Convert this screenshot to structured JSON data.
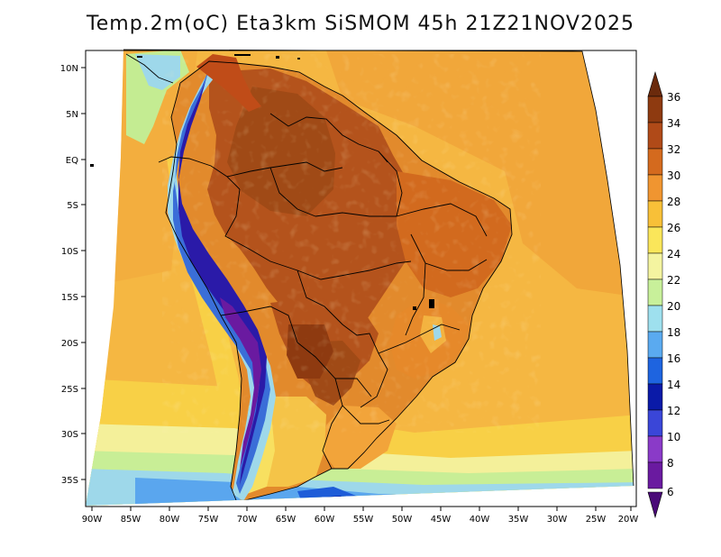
{
  "title": "Temp.2m(oC) Eta3km SiSMOM 45h 21Z21NOV2025",
  "map": {
    "variable": "2 m air temperature",
    "units": "oC",
    "lat_ticks": [
      "10N",
      "5N",
      "EQ",
      "5S",
      "10S",
      "15S",
      "20S",
      "25S",
      "30S",
      "35S"
    ],
    "lon_ticks": [
      "90W",
      "85W",
      "80W",
      "75W",
      "70W",
      "65W",
      "60W",
      "55W",
      "50W",
      "45W",
      "40W",
      "35W",
      "30W",
      "25W",
      "20W"
    ]
  },
  "colorbar": {
    "labels": [
      "36",
      "34",
      "32",
      "30",
      "28",
      "26",
      "24",
      "22",
      "20",
      "18",
      "16",
      "14",
      "12",
      "10",
      "8",
      "6"
    ],
    "colors": [
      "#6b2a0c",
      "#8e3a10",
      "#b04a18",
      "#d46a1e",
      "#f09530",
      "#f8c038",
      "#fae65a",
      "#f4f4a0",
      "#c8f09a",
      "#9ee0ee",
      "#5aaaf0",
      "#1e64e0",
      "#0a1aa8",
      "#3a46d8",
      "#8a3ac8",
      "#6a1aa0",
      "#4a0a78"
    ]
  }
}
